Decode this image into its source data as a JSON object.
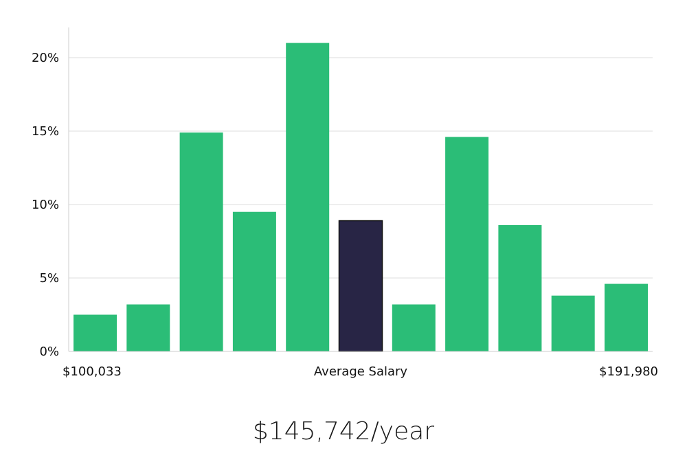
{
  "chart_data": {
    "type": "bar",
    "bin_count": 11,
    "values": [
      2.5,
      3.2,
      14.9,
      9.5,
      21.0,
      8.9,
      3.2,
      14.6,
      8.6,
      3.8,
      4.6
    ],
    "highlight_index": 5,
    "ylim": [
      0,
      22
    ],
    "yticks": [
      0,
      5,
      10,
      15,
      20
    ],
    "ytick_labels": [
      "0%",
      "5%",
      "10%",
      "15%",
      "20%"
    ],
    "x_min_label": "$100,033",
    "x_center_label": "Average Salary",
    "x_max_label": "$191,980",
    "grid": true,
    "colors": {
      "bar": "#2bbd77",
      "highlight": "#282545",
      "grid": "#dddddd",
      "axis": "#cccccc"
    }
  },
  "summary": {
    "average_salary": "$145,742/year"
  }
}
